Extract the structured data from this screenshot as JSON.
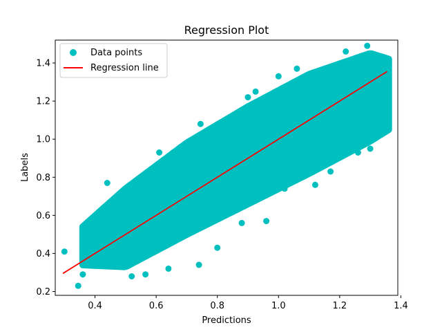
{
  "chart_data": {
    "type": "scatter",
    "title": "Regression Plot",
    "xlabel": "Predictions",
    "ylabel": "Labels",
    "xlim": [
      0.27,
      1.39
    ],
    "ylim": [
      0.18,
      1.52
    ],
    "xticks": [
      0.4,
      0.6,
      0.8,
      1.0,
      1.2,
      1.4
    ],
    "xtick_labels": [
      "0.4",
      "0.6",
      "0.8",
      "1.0",
      "1.2",
      "1.4"
    ],
    "yticks": [
      0.2,
      0.4,
      0.6,
      0.8,
      1.0,
      1.2,
      1.4
    ],
    "ytick_labels": [
      "0.2",
      "0.4",
      "0.6",
      "0.8",
      "1.0",
      "1.2",
      "1.4"
    ],
    "grid": false,
    "legend_placement": "upper left",
    "series": [
      {
        "name": "Data points",
        "kind": "scatter",
        "color": "#00bfbf",
        "band": {
          "x_range": [
            0.36,
            1.36
          ],
          "lower": [
            [
              0.36,
              0.34
            ],
            [
              0.5,
              0.33
            ],
            [
              0.7,
              0.5
            ],
            [
              0.9,
              0.66
            ],
            [
              1.1,
              0.82
            ],
            [
              1.3,
              0.99
            ],
            [
              1.36,
              1.05
            ]
          ],
          "upper": [
            [
              0.36,
              0.54
            ],
            [
              0.5,
              0.74
            ],
            [
              0.7,
              0.98
            ],
            [
              0.9,
              1.17
            ],
            [
              1.1,
              1.34
            ],
            [
              1.3,
              1.45
            ],
            [
              1.36,
              1.42
            ]
          ]
        },
        "x": [
          0.3,
          0.345,
          0.36,
          0.44,
          0.52,
          0.565,
          0.61,
          0.64,
          0.74,
          0.745,
          0.8,
          0.82,
          0.83,
          0.88,
          0.9,
          0.925,
          0.96,
          1.0,
          1.02,
          1.06,
          1.12,
          1.17,
          1.22,
          1.26,
          1.29,
          1.3
        ],
        "y": [
          0.41,
          0.23,
          0.29,
          0.77,
          0.28,
          0.29,
          0.93,
          0.32,
          0.34,
          1.08,
          0.43,
          1.05,
          1.08,
          0.56,
          1.22,
          1.25,
          0.57,
          1.33,
          0.74,
          1.37,
          0.76,
          0.83,
          1.46,
          0.93,
          1.49,
          0.95
        ]
      },
      {
        "name": "Regression line",
        "kind": "line",
        "color": "#ff0000",
        "x": [
          0.295,
          1.355
        ],
        "y": [
          0.295,
          1.355
        ]
      }
    ]
  }
}
